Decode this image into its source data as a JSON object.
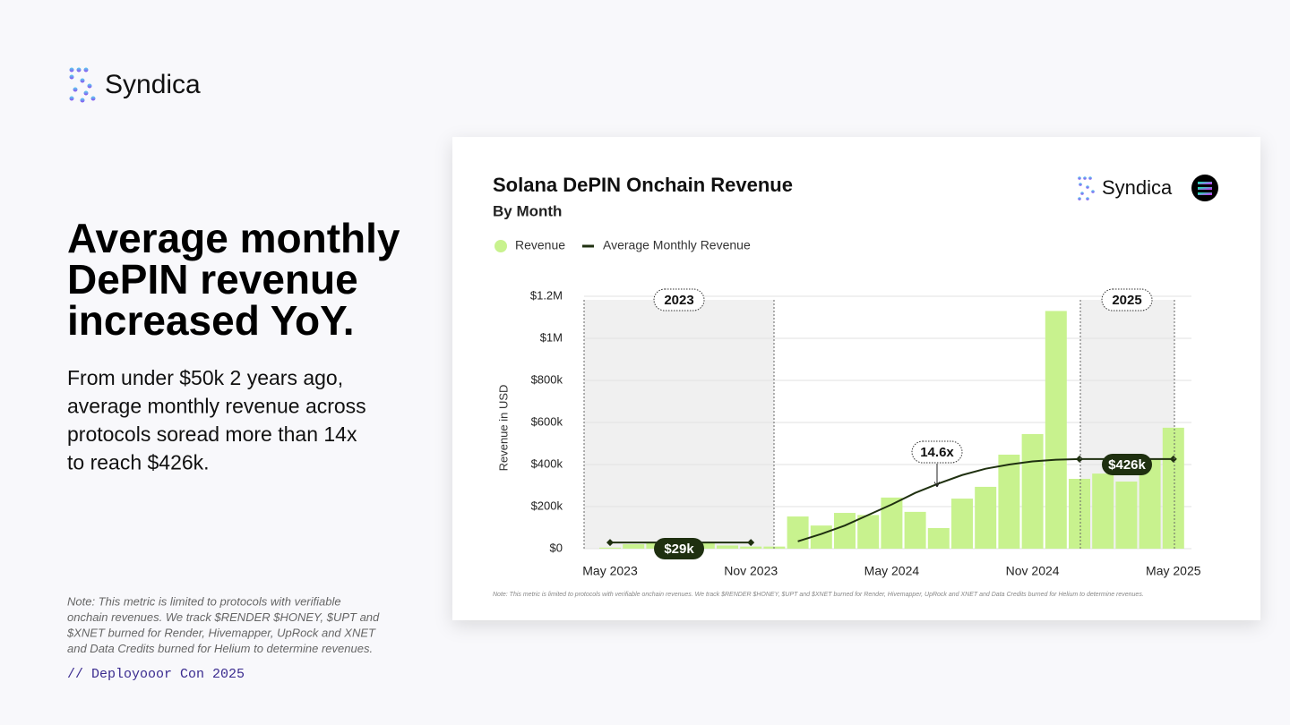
{
  "slide": {
    "logo": "Syndica",
    "headline": [
      "Average monthly",
      "DePIN revenue",
      "increased YoY."
    ],
    "body": [
      "From under $50k 2 years ago,",
      "average monthly revenue across",
      "protocols soread more than 14x",
      "to reach $426k."
    ],
    "note": [
      "Note: This metric is limited to protocols with verifiable",
      "onchain revenues. We track $RENDER $HONEY, $UPT and",
      "$XNET burned for Render, Hivemapper, UpRock and XNET",
      "and Data Credits burned for Helium to determine revenues."
    ],
    "footer": "// Deployooor Con 2025"
  },
  "chart_data": {
    "type": "bar",
    "title": "Solana DePIN Onchain Revenue",
    "subtitle": "By Month",
    "brand": "Syndica",
    "y_label": "Revenue in USD",
    "categories": [
      "May 2023",
      null,
      null,
      null,
      null,
      null,
      "Nov 2023",
      null,
      null,
      null,
      null,
      null,
      "May 2024",
      null,
      null,
      null,
      null,
      null,
      "Nov 2024",
      null,
      null,
      null,
      null,
      null,
      "May 2025"
    ],
    "series": [
      {
        "name": "Revenue",
        "color": "#c8f28e",
        "values": [
          5000,
          21000,
          30000,
          40000,
          30000,
          15000,
          10000,
          10000,
          153000,
          110000,
          170000,
          160000,
          243000,
          175000,
          98000,
          238000,
          294000,
          447000,
          545000,
          1130000,
          332000,
          357000,
          319000,
          430000,
          575000
        ]
      },
      {
        "name": "Average Monthly Revenue",
        "type": "line",
        "color": "#1f3010",
        "values": [
          29000,
          29000,
          29000,
          29000,
          29000,
          29000,
          29000,
          null,
          35000,
          70000,
          110000,
          160000,
          210000,
          265000,
          310000,
          350000,
          380000,
          400000,
          415000,
          423000,
          426000,
          426000,
          426000,
          426000,
          426000
        ]
      }
    ],
    "ylim": [
      0,
      1200000
    ],
    "yticks": [
      {
        "value": 0,
        "label": "$0"
      },
      {
        "value": 200000,
        "label": "$200k"
      },
      {
        "value": 400000,
        "label": "$400k"
      },
      {
        "value": 600000,
        "label": "$600k"
      },
      {
        "value": 800000,
        "label": "$800k"
      },
      {
        "value": 1000000,
        "label": "$1M"
      },
      {
        "value": 1200000,
        "label": "$1.2M"
      }
    ],
    "grid": true,
    "annotations": [
      "2023",
      "2025",
      "$29k",
      "14.6x",
      "$426k"
    ],
    "note": "Note: This metric is limited to protocols with verifiable onchain revenues. We track $RENDER $HONEY, $UPT and $XNET burned for Render, Hivemapper, UpRock and XNET and Data Credits burned for Helium to determine revenues."
  }
}
